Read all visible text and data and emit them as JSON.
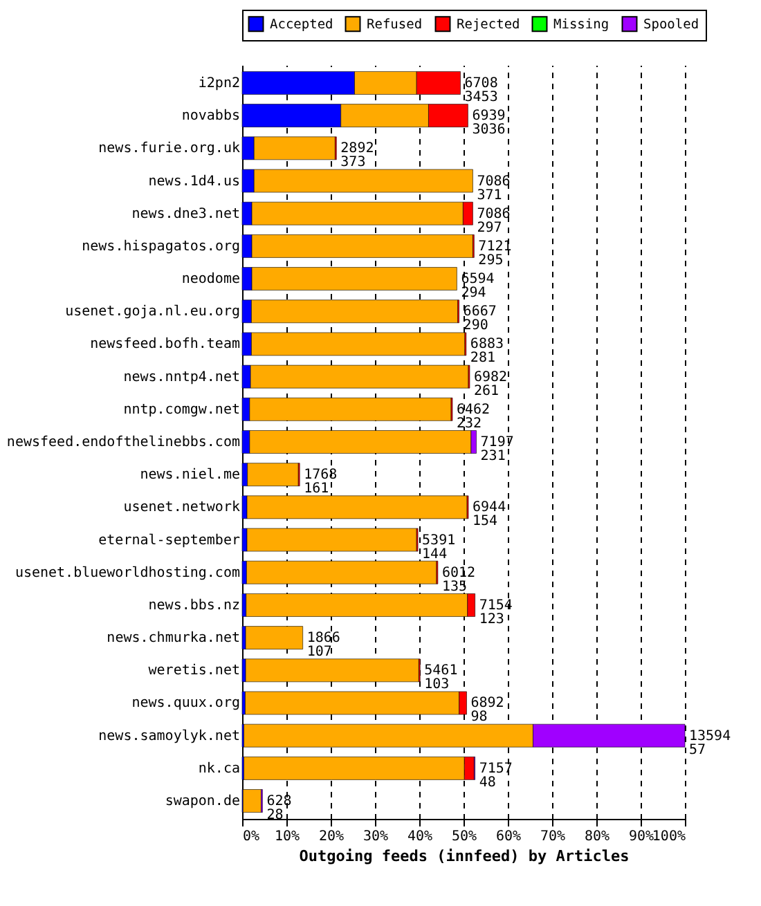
{
  "chart_data": {
    "type": "bar",
    "orientation": "horizontal",
    "stacked": true,
    "xlabel": "Outgoing feeds (innfeed) by Articles",
    "categories": [
      "i2pn2",
      "novabbs",
      "news.furie.org.uk",
      "news.1d4.us",
      "news.dne3.net",
      "news.hispagatos.org",
      "neodome",
      "usenet.goja.nl.eu.org",
      "newsfeed.bofh.team",
      "news.nntp4.net",
      "nntp.comgw.net",
      "newsfeed.endofthelinebbs.com",
      "news.niel.me",
      "usenet.network",
      "eternal-september",
      "usenet.blueworldhosting.com",
      "news.bbs.nz",
      "news.chmurka.net",
      "weretis.net",
      "news.quux.org",
      "news.samoylyk.net",
      "nk.ca",
      "swapon.de"
    ],
    "series": [
      {
        "name": "Accepted",
        "color": "#0000ff",
        "values": [
          25.4,
          22.3,
          2.7,
          2.7,
          2.2,
          2.2,
          2.2,
          2.1,
          2.1,
          1.9,
          1.7,
          1.7,
          1.2,
          1.1,
          1.1,
          1.0,
          0.9,
          0.8,
          0.8,
          0.7,
          0.4,
          0.4,
          0.2
        ]
      },
      {
        "name": "Refused",
        "color": "#ffaa00",
        "values": [
          14.0,
          19.8,
          18.3,
          49.4,
          47.7,
          49.9,
          46.3,
          46.6,
          48.2,
          49.2,
          45.5,
          50.0,
          11.5,
          49.7,
          38.3,
          42.9,
          50.0,
          12.9,
          39.1,
          48.3,
          65.3,
          49.8,
          4.1
        ]
      },
      {
        "name": "Rejected",
        "color": "#ff0000",
        "values": [
          9.9,
          8.9,
          0.3,
          null,
          2.2,
          0.3,
          null,
          0.3,
          0.3,
          0.3,
          0.3,
          null,
          0.3,
          0.3,
          0.3,
          0.3,
          1.7,
          null,
          0.3,
          1.7,
          null,
          2.2,
          null
        ]
      },
      {
        "name": "Missing",
        "color": "#00ff00",
        "values": [
          null,
          null,
          null,
          null,
          null,
          null,
          null,
          null,
          null,
          null,
          null,
          null,
          null,
          null,
          null,
          null,
          null,
          null,
          null,
          null,
          null,
          null,
          null
        ]
      },
      {
        "name": "Spooled",
        "color": "#a000ff",
        "values": [
          null,
          null,
          null,
          null,
          null,
          null,
          null,
          null,
          null,
          null,
          null,
          1.2,
          null,
          null,
          null,
          null,
          null,
          null,
          null,
          null,
          34.3,
          0.2,
          0.3
        ]
      }
    ],
    "xlim": [
      0,
      100
    ],
    "xticks": [
      {
        "value": 0,
        "label": "0%"
      },
      {
        "value": 10,
        "label": "10%"
      },
      {
        "value": 20,
        "label": "20%"
      },
      {
        "value": 30,
        "label": "30%"
      },
      {
        "value": 40,
        "label": "40%"
      },
      {
        "value": 50,
        "label": "50%"
      },
      {
        "value": 60,
        "label": "60%"
      },
      {
        "value": 70,
        "label": "70%"
      },
      {
        "value": 80,
        "label": "80%"
      },
      {
        "value": 90,
        "label": "90%"
      },
      {
        "value": 100,
        "label": "100%"
      }
    ],
    "grid": "x",
    "legend": "top",
    "annotations": [
      {
        "text": "6708\n3453",
        "x": 49.3,
        "y": "i2pn2"
      },
      {
        "text": "6939\n3036",
        "x": 51.0,
        "y": "novabbs"
      },
      {
        "text": "2892\n373",
        "x": 21.3,
        "y": "news.furie.org.uk"
      },
      {
        "text": "7086\n371",
        "x": 52.1,
        "y": "news.1d4.us"
      },
      {
        "text": "7086\n297",
        "x": 52.1,
        "y": "news.dne3.net"
      },
      {
        "text": "7121\n295",
        "x": 52.4,
        "y": "news.hispagatos.org"
      },
      {
        "text": "6594\n294",
        "x": 48.5,
        "y": "neodome"
      },
      {
        "text": "6667\n290",
        "x": 49.0,
        "y": "usenet.goja.nl.eu.org"
      },
      {
        "text": "6883\n281",
        "x": 50.6,
        "y": "newsfeed.bofh.team"
      },
      {
        "text": "6982\n261",
        "x": 51.4,
        "y": "news.nntp4.net"
      },
      {
        "text": "6462\n232",
        "x": 47.5,
        "y": "nntp.comgw.net"
      },
      {
        "text": "7197\n231",
        "x": 52.9,
        "y": "newsfeed.endofthelinebbs.com"
      },
      {
        "text": "1768\n161",
        "x": 13.0,
        "y": "news.niel.me"
      },
      {
        "text": "6944\n154",
        "x": 51.1,
        "y": "usenet.network"
      },
      {
        "text": "5391\n144",
        "x": 39.7,
        "y": "eternal-september"
      },
      {
        "text": "6012\n135",
        "x": 44.2,
        "y": "usenet.blueworldhosting.com"
      },
      {
        "text": "7154\n123",
        "x": 52.6,
        "y": "news.bbs.nz"
      },
      {
        "text": "1866\n107",
        "x": 13.7,
        "y": "news.chmurka.net"
      },
      {
        "text": "5461\n103",
        "x": 40.2,
        "y": "weretis.net"
      },
      {
        "text": "6892\n98",
        "x": 50.7,
        "y": "news.quux.org"
      },
      {
        "text": "13594\n57",
        "x": 100,
        "y": "news.samoylyk.net"
      },
      {
        "text": "7157\n48",
        "x": 52.6,
        "y": "nk.ca"
      },
      {
        "text": "628\n28",
        "x": 4.6,
        "y": "swapon.de"
      }
    ]
  }
}
